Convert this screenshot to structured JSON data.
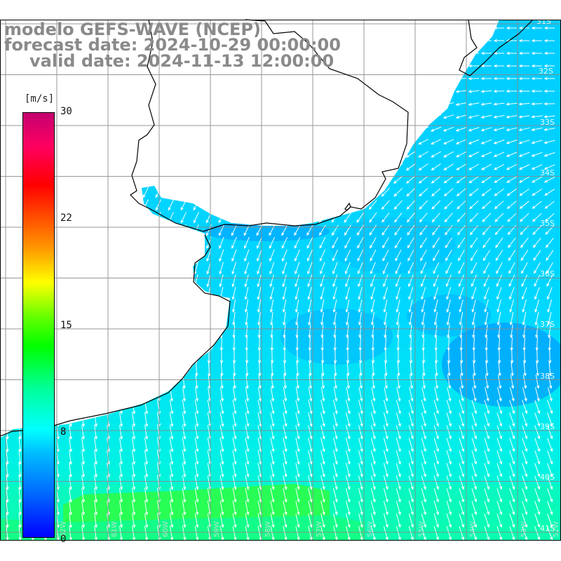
{
  "title": {
    "line1": "modelo GEFS-WAVE (NCEP)",
    "line2": "forecast date: 2024-10-29 00:00:00",
    "line3": "valid date: 2024-11-13 12:00:00"
  },
  "colorbar": {
    "unit": "[m/s]",
    "min": 0,
    "max": 30,
    "ticks": [
      {
        "value": 30,
        "label": "30"
      },
      {
        "value": 22,
        "label": "22"
      },
      {
        "value": 15,
        "label": "15"
      },
      {
        "value": 8,
        "label": "8"
      },
      {
        "value": 0,
        "label": "0"
      }
    ]
  },
  "grid_labels": {
    "latitudes": [
      "31S",
      "32S",
      "33S",
      "34S",
      "35S",
      "36S",
      "37S",
      "38S",
      "39S",
      "40S",
      "41S"
    ],
    "longitudes": [
      "62W",
      "61W",
      "60W",
      "59W",
      "58W",
      "57W",
      "56W",
      "55W",
      "54W",
      "53W",
      "52W"
    ]
  },
  "colors": {
    "ocean_low": "#00ccff",
    "ocean_mid": "#00e6f0",
    "ocean_high": "#00ff66",
    "land": "#ffffff",
    "grid": "#888888",
    "arrow": "#ffffff",
    "coast": "#000000",
    "title": "#8a8a8a"
  },
  "map_meta": {
    "field": "wind speed",
    "arrow_direction": "mostly south-southwest in south, west in northeast"
  }
}
